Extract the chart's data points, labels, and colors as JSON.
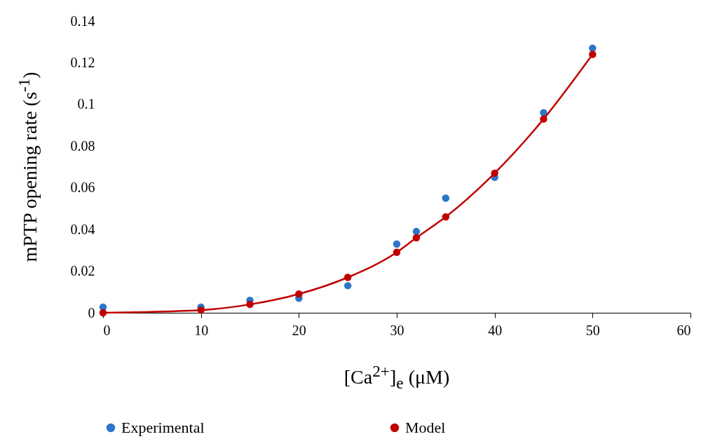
{
  "chart_data": {
    "type": "scatter",
    "xlabel": "[Ca$^{2+}$]$_{e}$ (μM)",
    "ylabel": "mPTP opening rate (s$^{-1}$)",
    "xlim": [
      0,
      60
    ],
    "xticks": [
      0,
      10,
      20,
      30,
      40,
      50,
      60
    ],
    "ylim": [
      0,
      0.14
    ],
    "yticks": [
      0,
      0.02,
      0.04,
      0.06,
      0.08,
      0.1,
      0.12,
      0.14
    ],
    "grid": false,
    "legend": "bottom",
    "marker": "circle",
    "series": [
      {
        "name": "Experimental",
        "color": "#2e75c9",
        "x": [
          0,
          10,
          15,
          20,
          25,
          30,
          32,
          35,
          40,
          45,
          50
        ],
        "values": [
          0.0027,
          0.0027,
          0.006,
          0.007,
          0.013,
          0.033,
          0.039,
          0.055,
          0.065,
          0.096,
          0.127
        ]
      },
      {
        "name": "Model",
        "type": "line",
        "color": "#c00000",
        "line_style": "solid",
        "x": [
          0,
          10,
          15,
          20,
          25,
          30,
          32,
          35,
          40,
          45,
          50
        ],
        "values": [
          0,
          0.0013,
          0.004,
          0.009,
          0.017,
          0.029,
          0.036,
          0.046,
          0.067,
          0.093,
          0.124
        ]
      }
    ]
  }
}
